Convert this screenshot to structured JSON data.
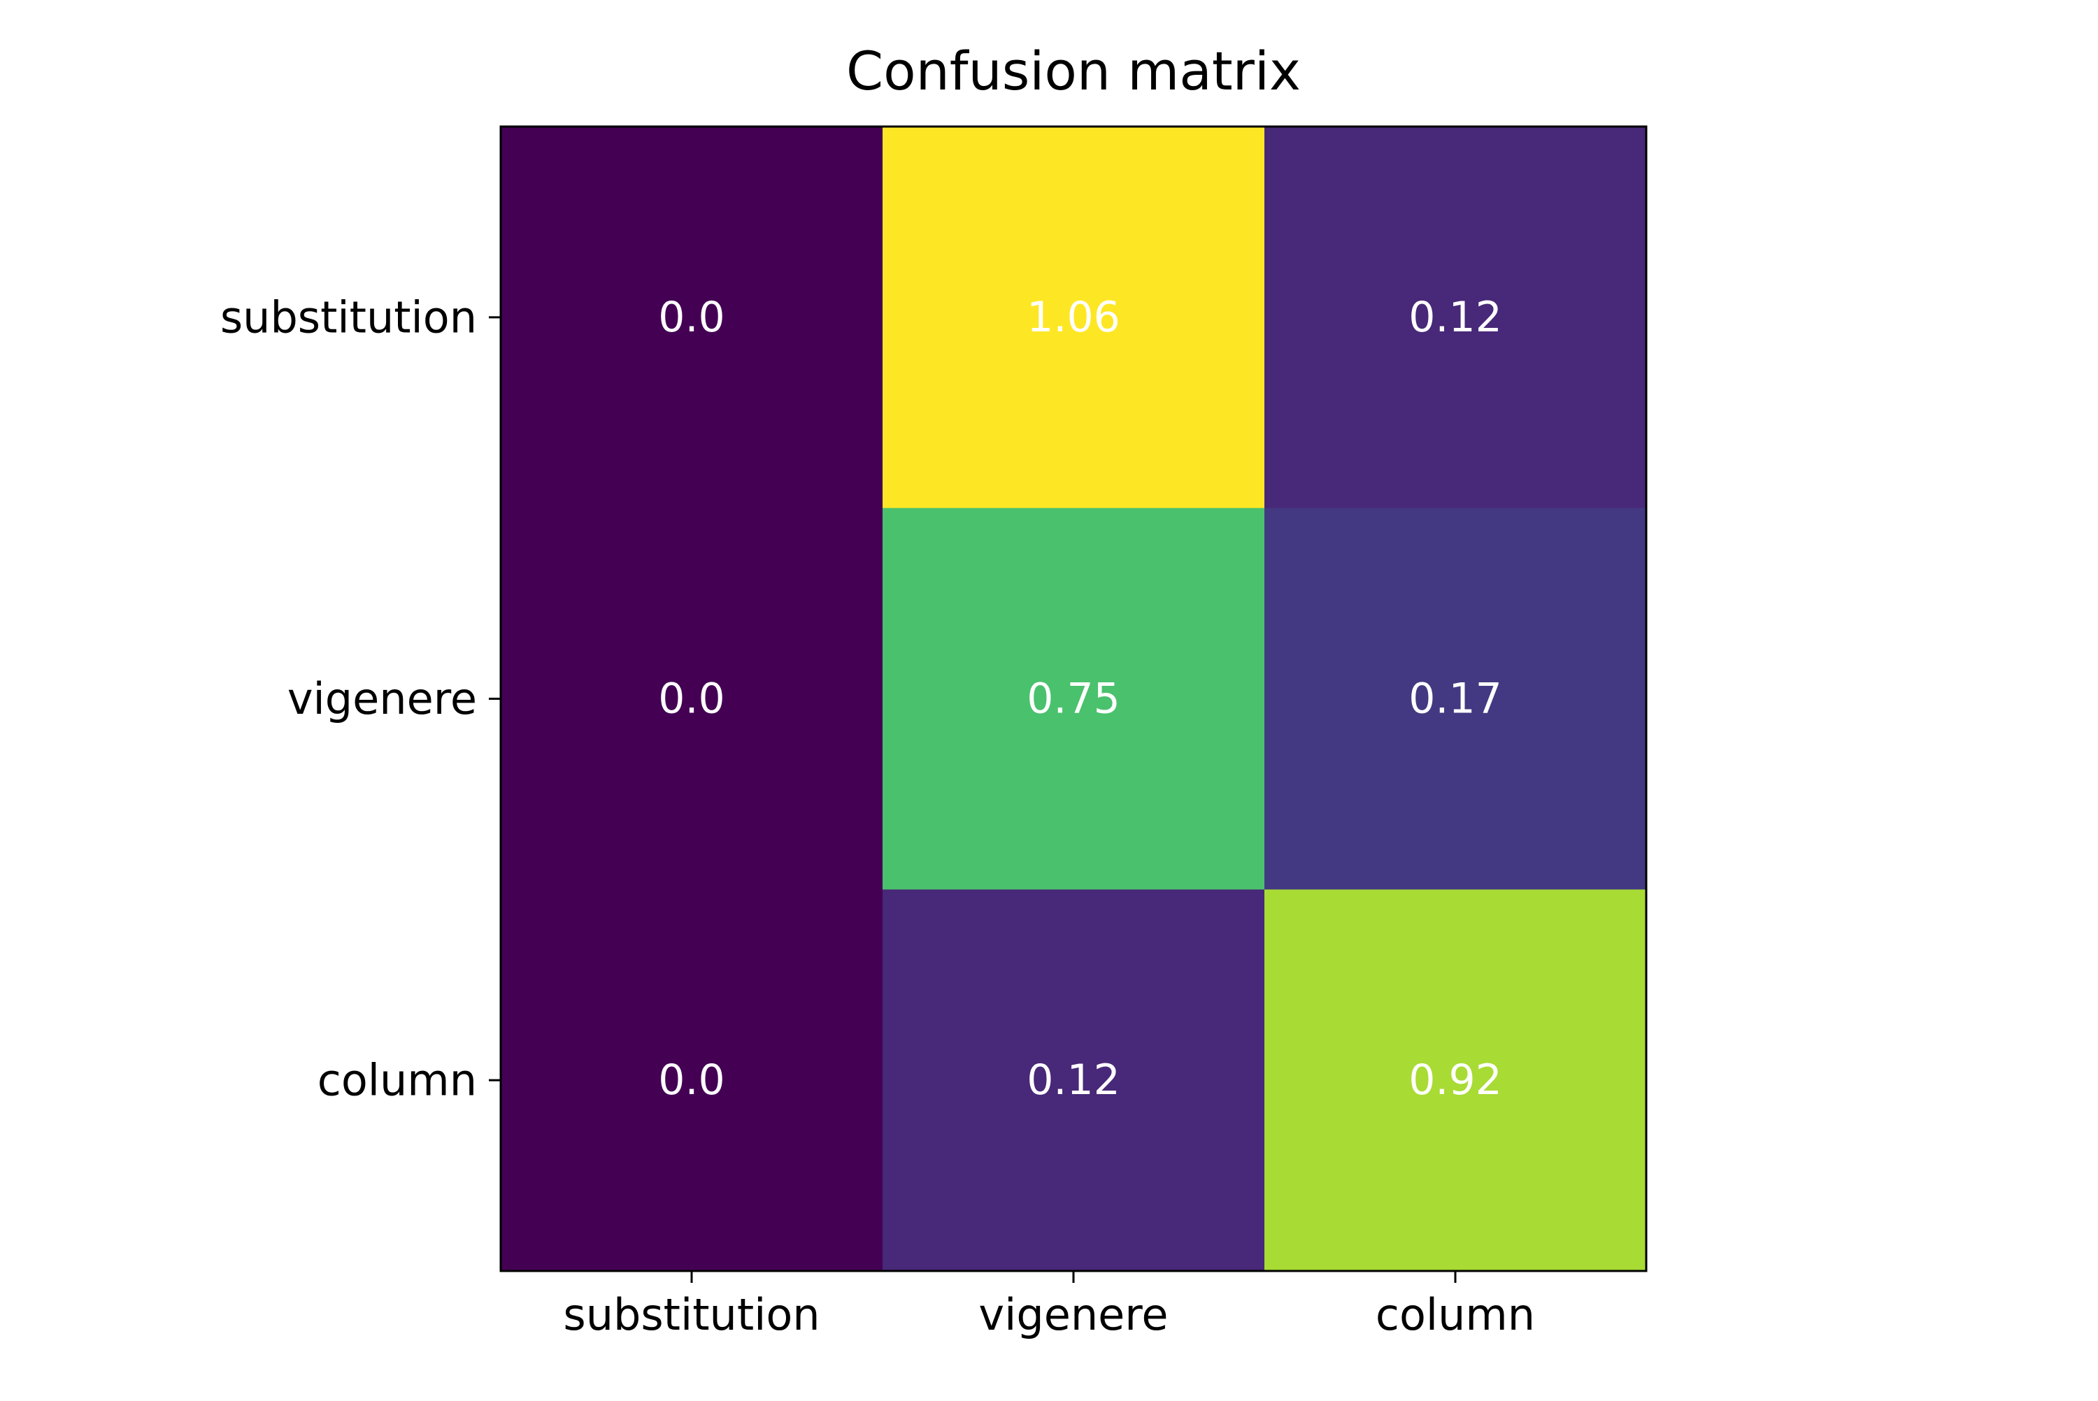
{
  "chart_data": {
    "type": "heatmap",
    "title": "Confusion matrix",
    "xlabel": "",
    "ylabel": "",
    "x_categories": [
      "substitution",
      "vigenere",
      "column"
    ],
    "y_categories": [
      "substitution",
      "vigenere",
      "column"
    ],
    "values": [
      [
        0.0,
        1.06,
        0.12
      ],
      [
        0.0,
        0.75,
        0.17
      ],
      [
        0.0,
        0.12,
        0.92
      ]
    ],
    "cell_labels": [
      [
        "0.0",
        "1.06",
        "0.12"
      ],
      [
        "0.0",
        "0.75",
        "0.17"
      ],
      [
        "0.0",
        "0.12",
        "0.92"
      ]
    ],
    "colormap": "viridis",
    "cell_colors": [
      [
        "#440154",
        "#fde725",
        "#482878"
      ],
      [
        "#440154",
        "#4ac16d",
        "#433982"
      ],
      [
        "#440154",
        "#482878",
        "#a8db34"
      ]
    ],
    "annotation_color": "#ffffff",
    "grid": false,
    "colorbar": false
  }
}
